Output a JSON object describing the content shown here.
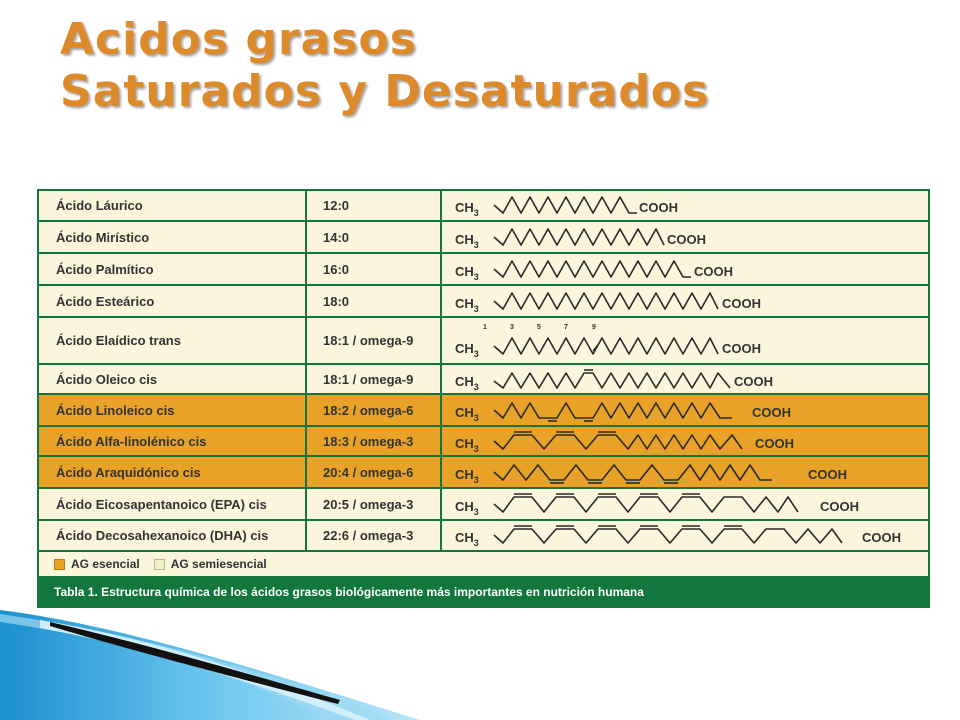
{
  "title": {
    "line1": "Acidos grasos",
    "line2": "Saturados y Desaturados"
  },
  "table": {
    "rows": [
      {
        "name": "Ácido Láurico",
        "code": "12:0",
        "type": "semi"
      },
      {
        "name": "Ácido Mirístico",
        "code": "14:0",
        "type": "semi"
      },
      {
        "name": "Ácido Palmítico",
        "code": "16:0",
        "type": "semi"
      },
      {
        "name": "Ácido Esteárico",
        "code": "18:0",
        "type": "semi"
      },
      {
        "name": "Ácido Elaídico trans",
        "code": "18:1 / omega-9",
        "type": "semi"
      },
      {
        "name": "Ácido Oleico cis",
        "code": "18:1 / omega-9",
        "type": "semi"
      },
      {
        "name": "Ácido Linoleico cis",
        "code": "18:2 / omega-6",
        "type": "ess"
      },
      {
        "name": "Ácido Alfa-linolénico cis",
        "code": "18:3 / omega-3",
        "type": "ess"
      },
      {
        "name": "Ácido Araquidónico cis",
        "code": "20:4 / omega-6",
        "type": "ess"
      },
      {
        "name": "Ácido Eicosapentanoico (EPA) cis",
        "code": "20:5 / omega-3",
        "type": "semi"
      },
      {
        "name": "Ácido Decosahexanoico (DHA) cis",
        "code": "22:6 / omega-3",
        "type": "semi"
      }
    ],
    "ch3_label": "CH",
    "ch3_sub": "3",
    "cooh_label": "COOH",
    "elaidic_markers": [
      "1",
      "3",
      "5",
      "7",
      "9"
    ],
    "legend": {
      "essential": "AG esencial",
      "semi": "AG semiesencial"
    },
    "caption": "Tabla 1. Estructura química de los ácidos grasos biológicamente más importantes en nutrición humana"
  },
  "colors": {
    "title": "#dd8a2a",
    "table_green": "#13763d",
    "semi_bg": "#fbf5dc",
    "essential_bg": "#e8a227",
    "text": "#333333"
  }
}
